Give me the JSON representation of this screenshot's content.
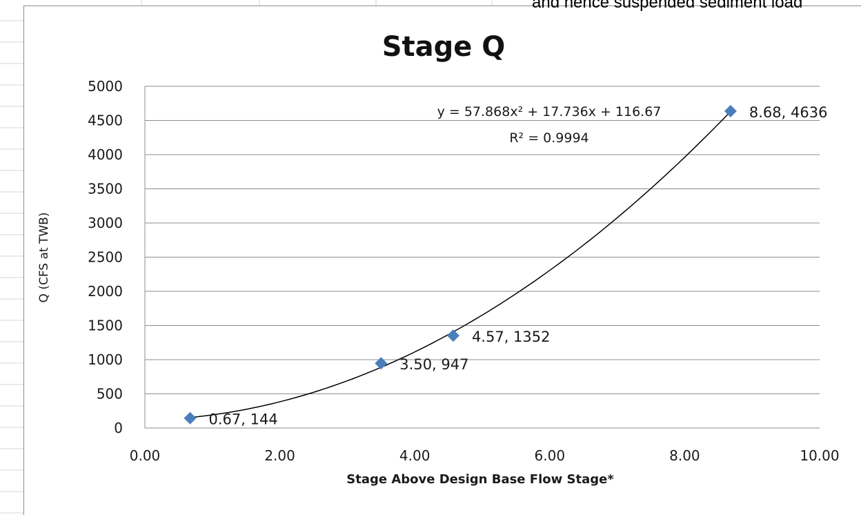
{
  "overflow_text": "and hence suspended sediment load",
  "chart_data": {
    "type": "scatter",
    "title": "Stage Q",
    "xlabel": "Stage  Above Design  Base  Flow  Stage*",
    "ylabel": "Q  (CFS at TWB)",
    "xlim": [
      0,
      10
    ],
    "ylim": [
      0,
      5000
    ],
    "x_ticks": [
      "0.00",
      "2.00",
      "4.00",
      "6.00",
      "8.00",
      "10.00"
    ],
    "y_ticks": [
      "0",
      "500",
      "1000",
      "1500",
      "2000",
      "2500",
      "3000",
      "3500",
      "4000",
      "4500",
      "5000"
    ],
    "grid": "horizontal",
    "legend": "none",
    "marker_color": "#4a7ebb",
    "points": [
      {
        "x": 0.67,
        "y": 144,
        "label": "0.67, 144"
      },
      {
        "x": 3.5,
        "y": 947,
        "label": "3.50, 947"
      },
      {
        "x": 4.57,
        "y": 1352,
        "label": "4.57, 1352"
      },
      {
        "x": 8.68,
        "y": 4636,
        "label": "8.68, 4636"
      }
    ],
    "trendline": {
      "type": "polynomial",
      "coefficients": [
        57.868,
        17.736,
        116.67
      ],
      "equation": "y = 57.868x² + 17.736x + 116.67",
      "r_squared": "R² = 0.9994"
    }
  }
}
